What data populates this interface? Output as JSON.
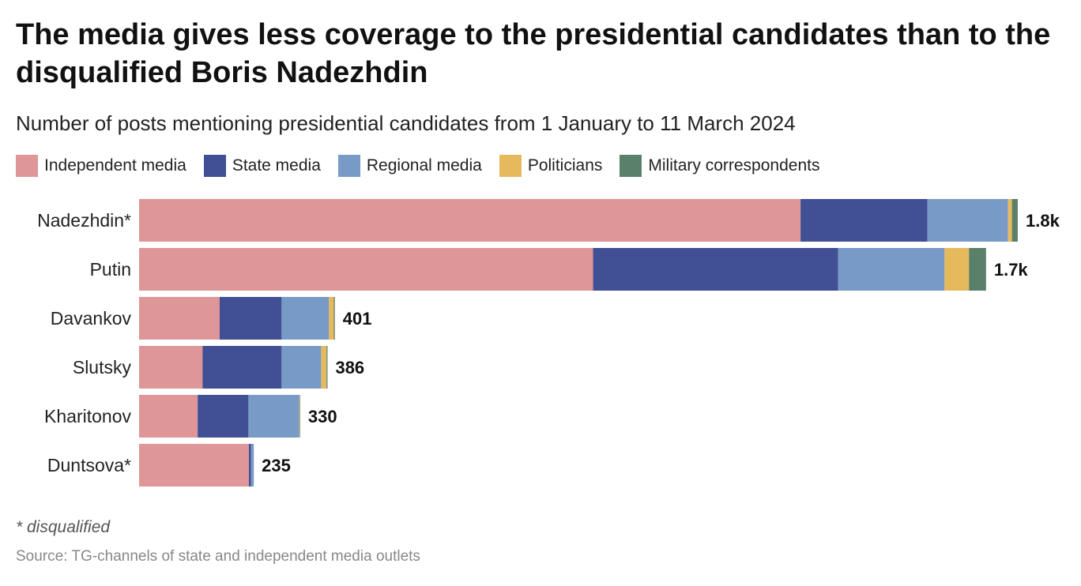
{
  "chart_data": {
    "type": "bar",
    "orientation": "horizontal",
    "stacked": true,
    "title": "The media gives less coverage to the presidential candidates than to the disqualified Boris Nadezhdin",
    "subtitle": "Number of posts mentioning presidential candidates from 1 January to 11 March 2024",
    "categories": [
      "Nadezhdin*",
      "Putin",
      "Davankov",
      "Slutsky",
      "Kharitonov",
      "Duntsova*"
    ],
    "totals": [
      1800,
      1735,
      401,
      386,
      330,
      235
    ],
    "total_labels": [
      "1.8k",
      "1.7k",
      "401",
      "386",
      "330",
      "235"
    ],
    "series": [
      {
        "name": "Independent media",
        "color": "#de9699",
        "values": [
          1355,
          930,
          165,
          130,
          120,
          225
        ]
      },
      {
        "name": "State media",
        "color": "#414f94",
        "values": [
          260,
          502,
          127,
          162,
          104,
          4
        ]
      },
      {
        "name": "Regional media",
        "color": "#789ac6",
        "values": [
          165,
          218,
          97,
          81,
          104,
          6
        ]
      },
      {
        "name": "Politicians",
        "color": "#e7b95d",
        "values": [
          8,
          50,
          10,
          11,
          1,
          0
        ]
      },
      {
        "name": "Military correspondents",
        "color": "#5a806a",
        "values": [
          12,
          35,
          2,
          2,
          1,
          0
        ]
      }
    ],
    "legend": "top-left",
    "grid": false,
    "xlim": [
      0,
      1800
    ]
  },
  "footnote": "* disqualified",
  "source": "Source: TG-channels of state and independent media outlets"
}
